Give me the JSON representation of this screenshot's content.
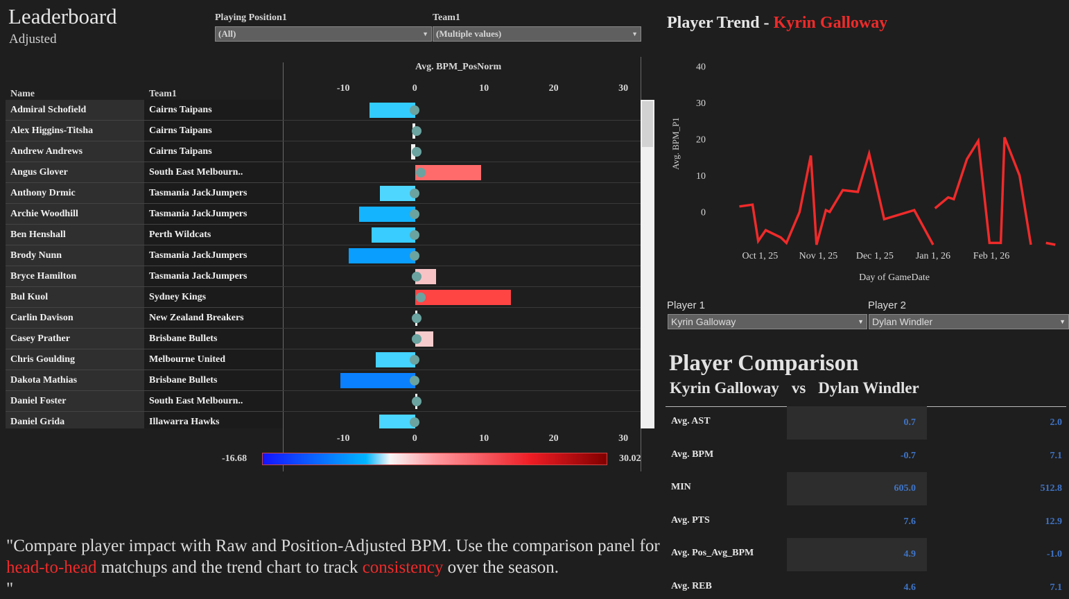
{
  "leaderboard": {
    "title": "Leaderboard",
    "subtitle": "Adjusted",
    "filters": [
      {
        "label": "Playing Position1",
        "value": "(All)"
      },
      {
        "label": "Team1",
        "value": "(Multiple values)"
      }
    ],
    "columns": {
      "name": "Name",
      "team": "Team1",
      "measure": "Avg. BPM_PosNorm"
    },
    "axis_ticks": [
      "-10",
      "0",
      "10",
      "20",
      "30"
    ],
    "legend": {
      "min": "-16.68",
      "max": "30.02"
    },
    "rows": [
      {
        "name": "Admiral Schofield",
        "team": "Cairns Taipans",
        "value": -6.6,
        "color": "#33ccff"
      },
      {
        "name": "Alex Higgins-Titsha",
        "team": "Cairns Taipans",
        "value": -0.4,
        "color": "#f0f0f0"
      },
      {
        "name": "Andrew Andrews",
        "team": "Cairns Taipans",
        "value": -0.6,
        "color": "#f2f2f2"
      },
      {
        "name": "Angus Glover",
        "team": "South East Melbourn..",
        "value": 9.5,
        "color": "#ff6b6b"
      },
      {
        "name": "Anthony Drmic",
        "team": "Tasmania JackJumpers",
        "value": -5.1,
        "color": "#4fd6ff"
      },
      {
        "name": "Archie Woodhill",
        "team": "Tasmania JackJumpers",
        "value": -8.1,
        "color": "#14b4ff"
      },
      {
        "name": "Ben Henshall",
        "team": "Perth Wildcats",
        "value": -6.3,
        "color": "#38ccff"
      },
      {
        "name": "Brody Nunn",
        "team": "Tasmania JackJumpers",
        "value": -9.6,
        "color": "#0a9eff"
      },
      {
        "name": "Bryce Hamilton",
        "team": "Tasmania JackJumpers",
        "value": 3.0,
        "color": "#f7c3c5"
      },
      {
        "name": "Bul Kuol",
        "team": "Sydney Kings",
        "value": 13.7,
        "color": "#ff4444"
      },
      {
        "name": "Carlin Davison",
        "team": "New Zealand Breakers",
        "value": 0.0,
        "color": "#f7f7f7"
      },
      {
        "name": "Casey Prather",
        "team": "Brisbane Bullets",
        "value": 2.6,
        "color": "#f6cccd"
      },
      {
        "name": "Chris Goulding",
        "team": "Melbourne United",
        "value": -5.7,
        "color": "#44d2ff"
      },
      {
        "name": "Dakota Mathias",
        "team": "Brisbane Bullets",
        "value": -10.7,
        "color": "#0a80ff"
      },
      {
        "name": "Daniel Foster",
        "team": "South East Melbourn..",
        "value": 0.0,
        "color": "#f7f7f7"
      },
      {
        "name": "Daniel Grida",
        "team": "Illawarra Hawks",
        "value": -5.2,
        "color": "#4bd6ff"
      }
    ]
  },
  "trend": {
    "title_prefix": "Player Trend - ",
    "player": "Kyrin Galloway",
    "chart_data": {
      "type": "line",
      "ylabel": "Avg. BPM_P1",
      "xlabel": "Day of GameDate",
      "y_ticks": [
        "40",
        "30",
        "20",
        "10",
        "0"
      ],
      "x_ticks": [
        "Oct 1, 25",
        "Nov 1, 25",
        "Dec 1, 25",
        "Jan 1, 26",
        "Feb 1, 26"
      ],
      "ylim": [
        -9,
        42
      ],
      "series": [
        {
          "values": [
            {
              "x": "2025-09-20",
              "y": 1.5
            },
            {
              "x": "2025-09-27",
              "y": 2
            },
            {
              "x": "2025-09-30",
              "y": -8
            },
            {
              "x": "2025-10-04",
              "y": -5
            },
            {
              "x": "2025-10-12",
              "y": -7
            },
            {
              "x": "2025-10-15",
              "y": -8.5
            },
            {
              "x": "2025-10-22",
              "y": 0
            },
            {
              "x": "2025-10-28",
              "y": 15.5
            },
            {
              "x": "2025-10-31",
              "y": -9
            },
            {
              "x": "2025-11-05",
              "y": 0.5
            },
            {
              "x": "2025-11-07",
              "y": 0
            },
            {
              "x": "2025-11-14",
              "y": 6
            },
            {
              "x": "2025-11-22",
              "y": 5.5
            },
            {
              "x": "2025-11-28",
              "y": 16
            },
            {
              "x": "2025-12-06",
              "y": -2
            },
            {
              "x": "2025-12-22",
              "y": 0.5
            },
            {
              "x": "2026-01-01",
              "y": -9
            }
          ]
        },
        {
          "values": [
            {
              "x": "2026-01-02",
              "y": 1
            },
            {
              "x": "2026-01-09",
              "y": 4
            },
            {
              "x": "2026-01-12",
              "y": 3.5
            },
            {
              "x": "2026-01-19",
              "y": 14.5
            },
            {
              "x": "2026-01-25",
              "y": 19.5
            },
            {
              "x": "2026-01-31",
              "y": -8.5
            },
            {
              "x": "2026-02-06",
              "y": -8.5
            },
            {
              "x": "2026-02-08",
              "y": 20.5
            },
            {
              "x": "2026-02-16",
              "y": 10
            },
            {
              "x": "2026-02-22",
              "y": -9
            }
          ]
        },
        {
          "values": [
            {
              "x": "2026-03-02",
              "y": -8.5
            },
            {
              "x": "2026-03-07",
              "y": -9
            }
          ]
        }
      ],
      "line_color": "#f02a2a"
    }
  },
  "selectors": [
    {
      "label": "Player 1",
      "value": "Kyrin Galloway"
    },
    {
      "label": "Player 2",
      "value": "Dylan Windler"
    }
  ],
  "comparison": {
    "title": "Player Comparison",
    "player1": "Kyrin Galloway",
    "vs": "vs",
    "player2": "Dylan Windler",
    "rows": [
      {
        "label": "Avg. AST",
        "p1": "0.7",
        "p2": "2.0"
      },
      {
        "label": "Avg. BPM",
        "p1": "-0.7",
        "p2": "7.1"
      },
      {
        "label": "MIN",
        "p1": "605.0",
        "p2": "512.8"
      },
      {
        "label": "Avg. PTS",
        "p1": "7.6",
        "p2": "12.9"
      },
      {
        "label": "Avg. Pos_Avg_BPM",
        "p1": "4.9",
        "p2": "-1.0"
      },
      {
        "label": "Avg. REB",
        "p1": "4.6",
        "p2": "7.1"
      }
    ]
  },
  "caption": {
    "part1": "\"Compare player impact with Raw and Position-Adjusted BPM. Use the comparison panel for ",
    "hl1": "head-to-head",
    "part2": " matchups and the trend chart to track ",
    "hl2": "consistency",
    "part3": " over the season.\n\""
  }
}
